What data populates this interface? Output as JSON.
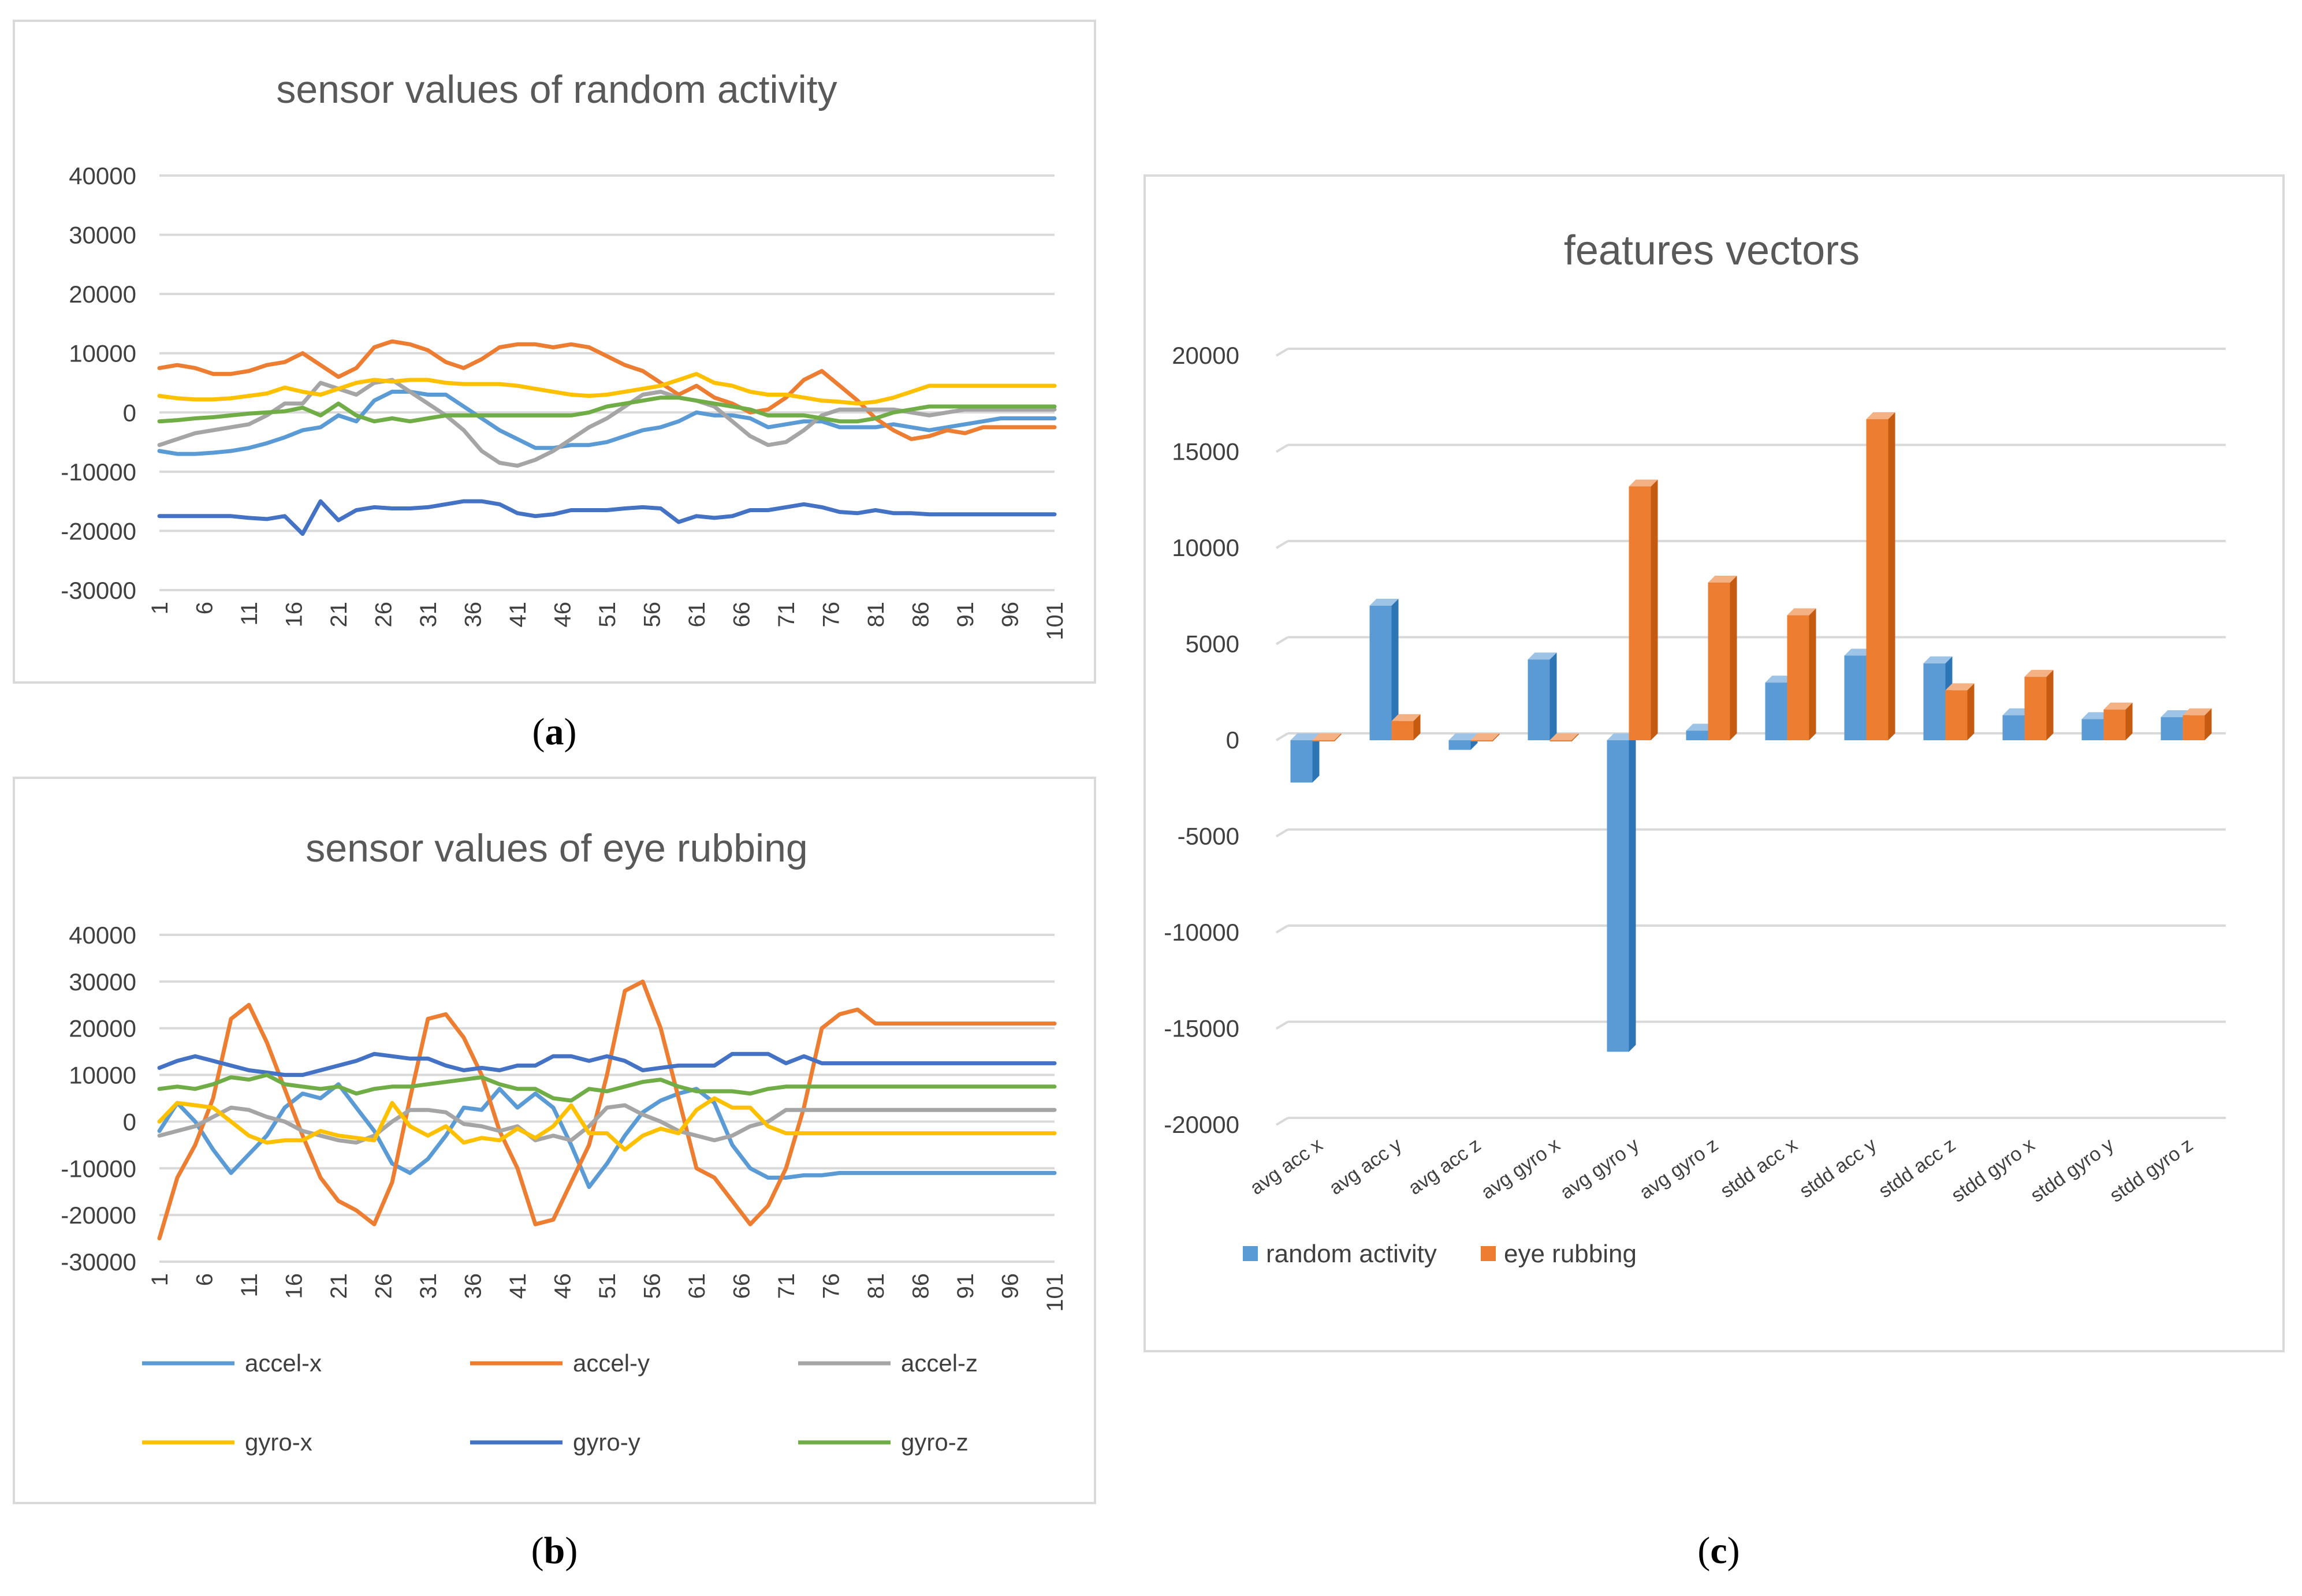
{
  "figure": {
    "captions": [
      {
        "paren_open": "(",
        "letter": "a",
        "paren_close": ")"
      },
      {
        "paren_open": "(",
        "letter": "b",
        "paren_close": ")"
      },
      {
        "paren_open": "(",
        "letter": "c",
        "paren_close": ")"
      }
    ]
  },
  "chart_data": [
    {
      "type": "line",
      "title": "sensor values of random activity",
      "xlabel": "",
      "ylabel": "",
      "ylim": [
        -30000,
        40000
      ],
      "yticks": [
        40000,
        30000,
        20000,
        10000,
        0,
        -10000,
        -20000,
        -30000
      ],
      "xticks": [
        "1",
        "6",
        "11",
        "16",
        "21",
        "26",
        "31",
        "36",
        "41",
        "46",
        "51",
        "56",
        "61",
        "66",
        "71",
        "76",
        "81",
        "86",
        "91",
        "96",
        "101"
      ],
      "series": [
        {
          "name": "accel-x",
          "color": "#5b9bd5",
          "values": [
            -6500,
            -7000,
            -7000,
            -6800,
            -6500,
            -6000,
            -5200,
            -4200,
            -3000,
            -2500,
            -500,
            -1500,
            2000,
            3500,
            3500,
            3000,
            3000,
            1000,
            -1000,
            -3000,
            -4500,
            -6000,
            -6000,
            -5500,
            -5500,
            -5000,
            -4000,
            -3000,
            -2500,
            -1500,
            0,
            -500,
            -500,
            -1000,
            -2500,
            -2000,
            -1500,
            -1500,
            -2500,
            -2500,
            -2500,
            -2000,
            -2500,
            -3000,
            -2500,
            -2000,
            -1500,
            -1000,
            -1000,
            -1000,
            -1000
          ]
        },
        {
          "name": "accel-y",
          "color": "#ed7d31",
          "values": [
            7500,
            8000,
            7500,
            6500,
            6500,
            7000,
            8000,
            8500,
            10000,
            8000,
            6000,
            7500,
            11000,
            12000,
            11500,
            10500,
            8500,
            7500,
            9000,
            11000,
            11500,
            11500,
            11000,
            11500,
            11000,
            9500,
            8000,
            7000,
            5000,
            3000,
            4500,
            2500,
            1500,
            0,
            500,
            2500,
            5500,
            7000,
            4500,
            2000,
            -1000,
            -3000,
            -4500,
            -4000,
            -3000,
            -3500,
            -2500,
            -2500,
            -2500,
            -2500,
            -2500
          ]
        },
        {
          "name": "accel-z",
          "color": "#a5a5a5",
          "values": [
            -5500,
            -4500,
            -3500,
            -3000,
            -2500,
            -2000,
            -500,
            1500,
            1500,
            5000,
            4000,
            3000,
            5000,
            5500,
            3500,
            1500,
            -500,
            -3000,
            -6500,
            -8500,
            -9000,
            -8000,
            -6500,
            -4500,
            -2500,
            -1000,
            1000,
            3000,
            3500,
            2500,
            2000,
            1000,
            -1500,
            -4000,
            -5500,
            -5000,
            -3000,
            -500,
            500,
            500,
            500,
            500,
            0,
            -500,
            0,
            500,
            500,
            500,
            500,
            500,
            500
          ]
        },
        {
          "name": "gyro-x",
          "color": "#ffc000",
          "values": [
            2800,
            2400,
            2200,
            2200,
            2400,
            2800,
            3200,
            4200,
            3500,
            3000,
            4000,
            5000,
            5500,
            5200,
            5500,
            5500,
            5000,
            4800,
            4800,
            4800,
            4500,
            4000,
            3500,
            3000,
            2800,
            3000,
            3500,
            4000,
            4500,
            5500,
            6500,
            5000,
            4500,
            3500,
            3000,
            3000,
            2500,
            2000,
            1800,
            1500,
            1800,
            2500,
            3500,
            4500,
            4500,
            4500,
            4500,
            4500,
            4500,
            4500,
            4500
          ]
        },
        {
          "name": "gyro-y",
          "color": "#4472c4",
          "values": [
            -17500,
            -17500,
            -17500,
            -17500,
            -17500,
            -17800,
            -18000,
            -17500,
            -20500,
            -15000,
            -18200,
            -16500,
            -16000,
            -16200,
            -16200,
            -16000,
            -15500,
            -15000,
            -15000,
            -15500,
            -17000,
            -17500,
            -17200,
            -16500,
            -16500,
            -16500,
            -16200,
            -16000,
            -16200,
            -18500,
            -17500,
            -17800,
            -17500,
            -16500,
            -16500,
            -16000,
            -15500,
            -16000,
            -16800,
            -17000,
            -16500,
            -17000,
            -17000,
            -17200,
            -17200,
            -17200,
            -17200,
            -17200,
            -17200,
            -17200,
            -17200
          ]
        },
        {
          "name": "gyro-z",
          "color": "#70ad47",
          "values": [
            -1500,
            -1300,
            -1000,
            -800,
            -500,
            -200,
            0,
            200,
            800,
            -500,
            1500,
            -500,
            -1500,
            -1000,
            -1500,
            -1000,
            -500,
            -500,
            -500,
            -500,
            -500,
            -500,
            -500,
            -500,
            0,
            1000,
            1500,
            2000,
            2500,
            2500,
            2000,
            1500,
            1000,
            500,
            -500,
            -500,
            -500,
            -1000,
            -1500,
            -1500,
            -1000,
            0,
            500,
            1000,
            1000,
            1000,
            1000,
            1000,
            1000,
            1000,
            1000
          ]
        }
      ]
    },
    {
      "type": "line",
      "title": "sensor values of eye rubbing",
      "xlabel": "",
      "ylabel": "",
      "ylim": [
        -30000,
        40000
      ],
      "yticks": [
        40000,
        30000,
        20000,
        10000,
        0,
        -10000,
        -20000,
        -30000
      ],
      "xticks": [
        "1",
        "6",
        "11",
        "16",
        "21",
        "26",
        "31",
        "36",
        "41",
        "46",
        "51",
        "56",
        "61",
        "66",
        "71",
        "76",
        "81",
        "86",
        "91",
        "96",
        "101"
      ],
      "legend": {
        "placement": "bottom",
        "entries": [
          "accel-x",
          "accel-y",
          "accel-z",
          "gyro-x",
          "gyro-y",
          "gyro-z"
        ]
      },
      "series": [
        {
          "name": "accel-x",
          "color": "#5b9bd5",
          "values": [
            -2000,
            4000,
            0,
            -6000,
            -11000,
            -7000,
            -3000,
            3000,
            6000,
            5000,
            8000,
            3000,
            -2000,
            -9000,
            -11000,
            -8000,
            -3000,
            3000,
            2500,
            7000,
            3000,
            6000,
            3000,
            -5000,
            -14000,
            -9000,
            -3000,
            2000,
            4500,
            6000,
            7000,
            4000,
            -5000,
            -10000,
            -12000,
            -12000,
            -11500,
            -11500,
            -11000,
            -11000,
            -11000,
            -11000,
            -11000,
            -11000,
            -11000,
            -11000,
            -11000,
            -11000,
            -11000,
            -11000,
            -11000
          ]
        },
        {
          "name": "accel-y",
          "color": "#ed7d31",
          "values": [
            -25000,
            -12000,
            -5000,
            5000,
            22000,
            25000,
            17000,
            7000,
            -3000,
            -12000,
            -17000,
            -19000,
            -22000,
            -13000,
            5000,
            22000,
            23000,
            18000,
            10000,
            -2000,
            -10000,
            -22000,
            -21000,
            -13000,
            -5000,
            10000,
            28000,
            30000,
            20000,
            5000,
            -10000,
            -12000,
            -17000,
            -22000,
            -18000,
            -10000,
            3000,
            20000,
            23000,
            24000,
            21000,
            21000,
            21000,
            21000,
            21000,
            21000,
            21000,
            21000,
            21000,
            21000,
            21000
          ]
        },
        {
          "name": "accel-z",
          "color": "#a5a5a5",
          "values": [
            -3000,
            -2000,
            -1000,
            1000,
            3000,
            2500,
            1000,
            0,
            -2000,
            -3000,
            -4000,
            -4500,
            -3000,
            0,
            2500,
            2500,
            2000,
            -500,
            -1000,
            -2000,
            -1000,
            -4000,
            -3000,
            -4000,
            -1000,
            3000,
            3500,
            1500,
            0,
            -2000,
            -3000,
            -4000,
            -3000,
            -1000,
            0,
            2500,
            2500,
            2500,
            2500,
            2500,
            2500,
            2500,
            2500,
            2500,
            2500,
            2500,
            2500,
            2500,
            2500,
            2500,
            2500
          ]
        },
        {
          "name": "gyro-x",
          "color": "#ffc000",
          "values": [
            0,
            4000,
            3500,
            3000,
            0,
            -3000,
            -4500,
            -4000,
            -4000,
            -2000,
            -3000,
            -3500,
            -4000,
            4000,
            -1000,
            -3000,
            -1000,
            -4500,
            -3500,
            -4000,
            -1500,
            -3500,
            -1000,
            3500,
            -2500,
            -2500,
            -6000,
            -3000,
            -1500,
            -2500,
            2500,
            5000,
            3000,
            3000,
            -1000,
            -2500,
            -2500,
            -2500,
            -2500,
            -2500,
            -2500,
            -2500,
            -2500,
            -2500,
            -2500,
            -2500,
            -2500,
            -2500,
            -2500,
            -2500,
            -2500
          ]
        },
        {
          "name": "gyro-y",
          "color": "#4472c4",
          "values": [
            11500,
            13000,
            14000,
            13000,
            12000,
            11000,
            10500,
            10000,
            10000,
            11000,
            12000,
            13000,
            14500,
            14000,
            13500,
            13500,
            12000,
            11000,
            11500,
            11000,
            12000,
            12000,
            14000,
            14000,
            13000,
            14000,
            13000,
            11000,
            11500,
            12000,
            12000,
            12000,
            14500,
            14500,
            14500,
            12500,
            14000,
            12500,
            12500,
            12500,
            12500,
            12500,
            12500,
            12500,
            12500,
            12500,
            12500,
            12500,
            12500,
            12500,
            12500
          ]
        },
        {
          "name": "gyro-z",
          "color": "#70ad47",
          "values": [
            7000,
            7500,
            7000,
            8000,
            9500,
            9000,
            10000,
            8000,
            7500,
            7000,
            7500,
            6000,
            7000,
            7500,
            7500,
            8000,
            8500,
            9000,
            9500,
            8000,
            7000,
            7000,
            5000,
            4500,
            7000,
            6500,
            7500,
            8500,
            9000,
            7500,
            6500,
            6500,
            6500,
            6000,
            7000,
            7500,
            7500,
            7500,
            7500,
            7500,
            7500,
            7500,
            7500,
            7500,
            7500,
            7500,
            7500,
            7500,
            7500,
            7500,
            7500
          ]
        }
      ]
    },
    {
      "type": "bar",
      "title": "features vectors",
      "xlabel": "",
      "ylabel": "",
      "ylim": [
        -20000,
        20000
      ],
      "yticks": [
        20000,
        15000,
        10000,
        5000,
        0,
        -5000,
        -10000,
        -15000,
        -20000
      ],
      "categories": [
        "avg acc x",
        "avg acc y",
        "avg acc z",
        "avg gyro x",
        "avg gyro y",
        "avg gyro z",
        "stdd acc x",
        "stdd acc y",
        "stdd acc z",
        "stdd gyro x",
        "stdd gyro y",
        "stdd gyro z"
      ],
      "legend": {
        "placement": "bottom-left",
        "entries": [
          "random activity",
          "eye rubbing"
        ]
      },
      "series": [
        {
          "name": "random activity",
          "color": "#5b9bd5",
          "values": [
            -2200,
            7000,
            -500,
            4200,
            -16200,
            500,
            3000,
            4400,
            4000,
            1300,
            1100,
            1200
          ]
        },
        {
          "name": "eye rubbing",
          "color": "#ed7d31",
          "values": [
            0,
            1000,
            0,
            0,
            13200,
            8200,
            6500,
            16700,
            2600,
            3300,
            1600,
            1300
          ]
        }
      ]
    }
  ]
}
